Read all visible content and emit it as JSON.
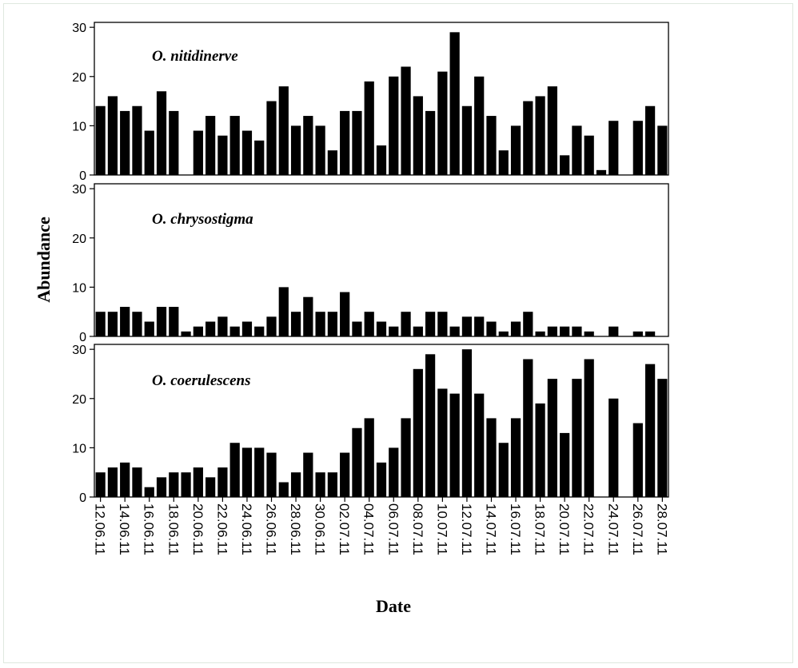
{
  "chart_data": {
    "type": "bar",
    "xlabel": "Date",
    "ylabel": "Abundance",
    "ylim": [
      0,
      31
    ],
    "yticks": [
      0,
      10,
      20,
      30
    ],
    "categories": [
      "12.06.11",
      "13.06.11",
      "14.06.11",
      "15.06.11",
      "16.06.11",
      "17.06.11",
      "18.06.11",
      "19.06.11",
      "20.06.11",
      "21.06.11",
      "22.06.11",
      "23.06.11",
      "24.06.11",
      "25.06.11",
      "26.06.11",
      "27.06.11",
      "28.06.11",
      "29.06.11",
      "30.06.11",
      "01.07.11",
      "02.07.11",
      "03.07.11",
      "04.07.11",
      "05.07.11",
      "06.07.11",
      "07.07.11",
      "08.07.11",
      "09.07.11",
      "10.07.11",
      "11.07.11",
      "12.07.11",
      "13.07.11",
      "14.07.11",
      "15.07.11",
      "16.07.11",
      "17.07.11",
      "18.07.11",
      "19.07.11",
      "20.07.11",
      "21.07.11",
      "22.07.11",
      "23.07.11",
      "24.07.11",
      "25.07.11",
      "26.07.11",
      "27.07.11",
      "28.07.11"
    ],
    "visible_tick_labels": [
      "12.06.11",
      "14.06.11",
      "16.06.11",
      "18.06.11",
      "20.06.11",
      "22.06.11",
      "24.06.11",
      "26.06.11",
      "28.06.11",
      "30.06.11",
      "02.07.11",
      "04.07.11",
      "06.07.11",
      "08.07.11",
      "10.07.11",
      "12.07.11",
      "14.07.11",
      "16.07.11",
      "18.07.11",
      "20.07.11",
      "22.07.11",
      "24.07.11",
      "26.07.11",
      "28.07.11"
    ],
    "series": [
      {
        "name": "O. nitidinerve",
        "values": [
          14,
          16,
          13,
          14,
          9,
          17,
          13,
          0,
          9,
          12,
          8,
          12,
          9,
          7,
          15,
          18,
          10,
          12,
          10,
          5,
          13,
          13,
          19,
          6,
          20,
          22,
          16,
          13,
          21,
          29,
          14,
          20,
          12,
          5,
          10,
          15,
          16,
          18,
          4,
          10,
          8,
          1,
          11,
          0,
          11,
          14,
          10
        ]
      },
      {
        "name": "O. chrysostigma",
        "values": [
          5,
          5,
          6,
          5,
          3,
          6,
          6,
          1,
          2,
          3,
          4,
          2,
          3,
          2,
          4,
          10,
          5,
          8,
          5,
          5,
          9,
          3,
          5,
          3,
          2,
          5,
          2,
          5,
          5,
          2,
          4,
          4,
          3,
          1,
          3,
          5,
          1,
          2,
          2,
          2,
          1,
          0,
          2,
          0,
          1,
          1,
          0
        ]
      },
      {
        "name": "O. coerulescens",
        "values": [
          5,
          6,
          7,
          6,
          2,
          4,
          5,
          5,
          6,
          4,
          6,
          11,
          10,
          10,
          9,
          3,
          5,
          9,
          5,
          5,
          9,
          14,
          16,
          7,
          10,
          16,
          26,
          29,
          22,
          21,
          30,
          21,
          16,
          11,
          16,
          28,
          19,
          24,
          13,
          24,
          28,
          0,
          20,
          0,
          15,
          27,
          24
        ]
      }
    ],
    "bar_color": "#000000",
    "panel_border_color": "#000000",
    "frame_border_color": "#dfe8df"
  }
}
